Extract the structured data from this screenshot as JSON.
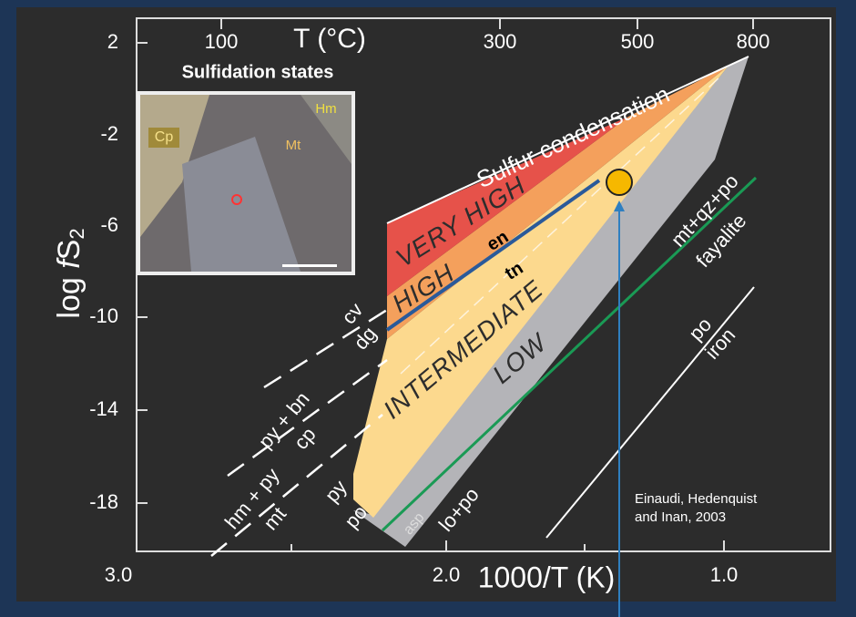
{
  "axes": {
    "y_title": [
      "log ",
      "f",
      "S",
      "2"
    ],
    "y_ticks": [
      "2",
      "-2",
      "-6",
      "-10",
      "-14",
      "-18"
    ],
    "top_title": "T (°C)",
    "top_ticks": [
      "100",
      "300",
      "500",
      "800"
    ],
    "x_title": "1000/T (K)",
    "x_ticks": [
      "3.0",
      "2.0",
      "1.0"
    ]
  },
  "inset": {
    "title": "Sulfidation states",
    "labels": [
      "Cp",
      "Hm",
      "Mt"
    ]
  },
  "regions": [
    "VERY HIGH",
    "HIGH",
    "INTERMEDIATE",
    "LOW"
  ],
  "phases": [
    "en",
    "tn"
  ],
  "line_labels": [
    "Sulfur condensation",
    "cv",
    "dg",
    "py + bn",
    "cp",
    "hm + py",
    "mt",
    "py",
    "po",
    "asp",
    "lo+po",
    "mt+qz+po",
    "fayalite",
    "po",
    "iron"
  ],
  "credit": [
    "Einaudi, Hedenquist",
    "and Inan, 2003"
  ]
}
